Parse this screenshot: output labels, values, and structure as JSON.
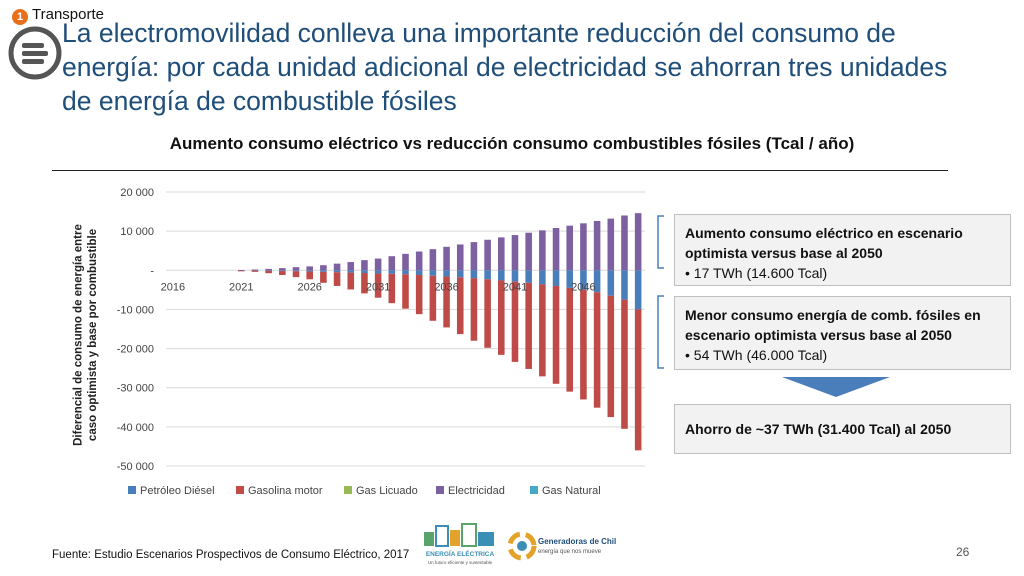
{
  "header": {
    "section_number": "1",
    "section_label": "Transporte",
    "title": "La electromovilidad conlleva una importante reducción del consumo de energía: por cada unidad adicional de electricidad se ahorran tres unidades de energía de combustible fósiles"
  },
  "chart_data": {
    "type": "bar",
    "stacked": true,
    "title": "Aumento consumo eléctrico vs reducción consumo combustibles fósiles (Tcal / año)",
    "ylabel": "Diferencial de consumo de energía entre caso optimista y base por combustible",
    "xlabel": "",
    "ylim": [
      -50000,
      20000
    ],
    "yticks": [
      20000,
      10000,
      0,
      -10000,
      -20000,
      -30000,
      -40000,
      -50000
    ],
    "ytick_labels": [
      "20 000",
      "10 000",
      "-",
      "-10 000",
      "-20 000",
      "-30 000",
      "-40 000",
      "-50 000"
    ],
    "xtick_labels": [
      "2016",
      "2021",
      "2026",
      "2031",
      "2036",
      "2041",
      "2046"
    ],
    "categories": [
      "2016",
      "2017",
      "2018",
      "2019",
      "2020",
      "2021",
      "2022",
      "2023",
      "2024",
      "2025",
      "2026",
      "2027",
      "2028",
      "2029",
      "2030",
      "2031",
      "2032",
      "2033",
      "2034",
      "2035",
      "2036",
      "2037",
      "2038",
      "2039",
      "2040",
      "2041",
      "2042",
      "2043",
      "2044",
      "2045",
      "2046",
      "2047",
      "2048",
      "2049",
      "2050"
    ],
    "legend_position": "bottom",
    "grid": true,
    "series": [
      {
        "name": "Petróleo Diésel",
        "color": "#4a7ebb",
        "values": [
          0,
          0,
          0,
          0,
          0,
          -50,
          -100,
          -150,
          -200,
          -250,
          -300,
          -400,
          -500,
          -600,
          -700,
          -800,
          -900,
          -1000,
          -1200,
          -1400,
          -1600,
          -1800,
          -2000,
          -2300,
          -2600,
          -2900,
          -3200,
          -3600,
          -4000,
          -4500,
          -5000,
          -5600,
          -6500,
          -7500,
          -10000
        ]
      },
      {
        "name": "Gasolina motor",
        "color": "#be4b48",
        "values": [
          0,
          0,
          0,
          0,
          0,
          -100,
          -300,
          -600,
          -1000,
          -1500,
          -2000,
          -2800,
          -3500,
          -4300,
          -5200,
          -6200,
          -7500,
          -8800,
          -10000,
          -11500,
          -13000,
          -14500,
          -16000,
          -17500,
          -19000,
          -20500,
          -22000,
          -23500,
          -25000,
          -26500,
          -28000,
          -29500,
          -31000,
          -33000,
          -36000
        ]
      },
      {
        "name": "Gas Licuado",
        "color": "#98b954",
        "values": [
          0,
          0,
          0,
          0,
          0,
          0,
          0,
          0,
          0,
          0,
          0,
          0,
          0,
          0,
          0,
          0,
          0,
          0,
          0,
          0,
          0,
          0,
          0,
          0,
          0,
          0,
          0,
          0,
          0,
          0,
          0,
          0,
          0,
          0,
          0
        ]
      },
      {
        "name": "Electricidad",
        "color": "#7d60a0",
        "values": [
          0,
          0,
          0,
          0,
          0,
          80,
          200,
          350,
          550,
          800,
          1000,
          1300,
          1700,
          2100,
          2600,
          3000,
          3600,
          4200,
          4800,
          5400,
          6000,
          6600,
          7200,
          7800,
          8400,
          9000,
          9600,
          10200,
          10800,
          11400,
          12000,
          12600,
          13200,
          14000,
          14600
        ]
      },
      {
        "name": "Gas Natural",
        "color": "#46aac5",
        "values": [
          0,
          0,
          0,
          0,
          0,
          0,
          0,
          0,
          0,
          0,
          0,
          0,
          0,
          0,
          0,
          0,
          0,
          0,
          0,
          0,
          0,
          0,
          0,
          0,
          0,
          0,
          0,
          0,
          0,
          0,
          0,
          0,
          0,
          0,
          0
        ]
      }
    ]
  },
  "callouts": {
    "box1": {
      "title": "Aumento consumo eléctrico en escenario optimista versus base al 2050",
      "bullet": "17 TWh (14.600 Tcal)"
    },
    "box2": {
      "title": "Menor consumo energía de comb. fósiles en escenario optimista versus base al 2050",
      "bullet": "54 TWh (46.000 Tcal)"
    },
    "box3": {
      "title": "Ahorro de ~37 TWh (31.400 Tcal) al 2050"
    }
  },
  "footer": {
    "source": "Fuente: Estudio Escenarios Prospectivos de Consumo Eléctrico, 2017",
    "page_number": "26"
  },
  "logos": {
    "energia_electrica": {
      "name": "ENERGÍA ELÉCTRICA",
      "tagline": "Un futuro eficiente y sustentable"
    },
    "generadoras": {
      "name": "Generadoras de Chile",
      "tagline": "energía que nos mueve"
    }
  }
}
